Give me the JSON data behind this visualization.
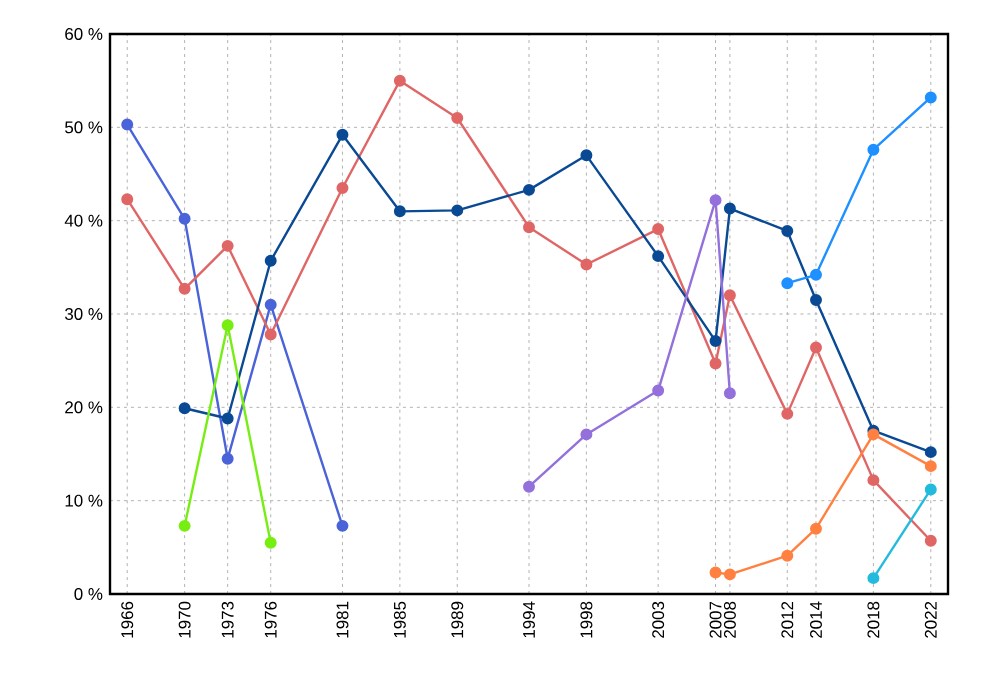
{
  "chart_data": {
    "type": "line",
    "marker": "circle",
    "grid": true,
    "xlim": [
      1964.8,
      2023.2
    ],
    "ylim": [
      0,
      60
    ],
    "xticks": [
      1966,
      1970,
      1973,
      1976,
      1981,
      1985,
      1989,
      1994,
      1998,
      2003,
      2007,
      2008,
      2012,
      2014,
      2018,
      2022
    ],
    "yticks": [
      {
        "value": 0,
        "label": "0 %"
      },
      {
        "value": 10,
        "label": "10 %"
      },
      {
        "value": 20,
        "label": "20 %"
      },
      {
        "value": 30,
        "label": "30 %"
      },
      {
        "value": 40,
        "label": "40 %"
      },
      {
        "value": 50,
        "label": "50 %"
      },
      {
        "value": 60,
        "label": "60 %"
      }
    ],
    "series": [
      {
        "color": "#4a63d9",
        "x": [
          1966,
          1970,
          1973,
          1976,
          1981
        ],
        "values": [
          50.3,
          40.2,
          14.5,
          31,
          7.3
        ]
      },
      {
        "color": "#e06666",
        "x": [
          1966,
          1970,
          1973,
          1976,
          1981,
          1985,
          1989,
          1994,
          1998,
          2003,
          2007,
          2008,
          2012,
          2014,
          2018,
          2022
        ],
        "values": [
          42.3,
          32.7,
          37.3,
          27.8,
          43.5,
          55,
          51,
          39.3,
          35.3,
          39.1,
          24.7,
          32,
          19.3,
          26.4,
          12.2,
          5.7
        ]
      },
      {
        "color": "#0a4a94",
        "x": [
          1970,
          1973,
          1976,
          1981,
          1985,
          1989,
          1994,
          1998,
          2003,
          2007,
          2008,
          2012,
          2014,
          2018,
          2022
        ],
        "values": [
          19.9,
          18.8,
          35.7,
          49.2,
          41,
          41.1,
          43.3,
          47,
          36.2,
          27.1,
          41.3,
          38.9,
          31.5,
          17.5,
          15.2
        ]
      },
      {
        "color": "#77ee11",
        "x": [
          1970,
          1973,
          1976
        ],
        "values": [
          7.3,
          28.8,
          5.5
        ]
      },
      {
        "color": "#9370db",
        "x": [
          1994,
          1998,
          2003,
          2007,
          2008
        ],
        "values": [
          11.5,
          17.1,
          21.8,
          42.2,
          21.5
        ]
      },
      {
        "color": "#ff8040",
        "x": [
          2007,
          2008,
          2012,
          2014,
          2018,
          2022
        ],
        "values": [
          2.3,
          2.1,
          4.1,
          7,
          17.1,
          13.7
        ]
      },
      {
        "color": "#1e90ff",
        "x": [
          2012,
          2014,
          2018,
          2022
        ],
        "values": [
          33.3,
          34.2,
          47.6,
          53.2
        ]
      },
      {
        "color": "#22bbdd",
        "x": [
          2018,
          2022
        ],
        "values": [
          1.7,
          11.2
        ]
      }
    ]
  }
}
